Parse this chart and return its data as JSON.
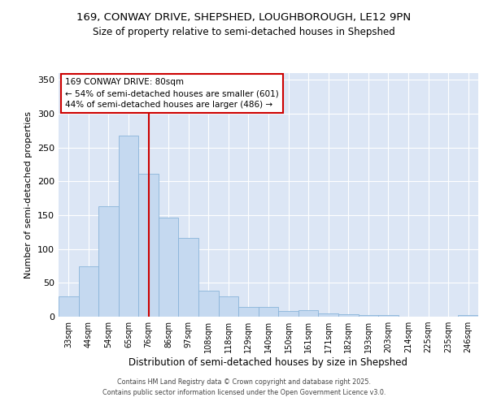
{
  "title_line1": "169, CONWAY DRIVE, SHEPSHED, LOUGHBOROUGH, LE12 9PN",
  "title_line2": "Size of property relative to semi-detached houses in Shepshed",
  "xlabel": "Distribution of semi-detached houses by size in Shepshed",
  "ylabel": "Number of semi-detached properties",
  "categories": [
    "33sqm",
    "44sqm",
    "54sqm",
    "65sqm",
    "76sqm",
    "86sqm",
    "97sqm",
    "108sqm",
    "118sqm",
    "129sqm",
    "140sqm",
    "150sqm",
    "161sqm",
    "171sqm",
    "182sqm",
    "193sqm",
    "203sqm",
    "214sqm",
    "225sqm",
    "235sqm",
    "246sqm"
  ],
  "values": [
    30,
    75,
    163,
    268,
    211,
    146,
    117,
    39,
    30,
    14,
    14,
    9,
    10,
    5,
    4,
    2,
    2,
    0,
    0,
    0,
    2
  ],
  "bar_color": "#c5d9f0",
  "bar_edge_color": "#8ab4d9",
  "red_line_x": 4.5,
  "annotation_title": "169 CONWAY DRIVE: 80sqm",
  "annotation_line1": "← 54% of semi-detached houses are smaller (601)",
  "annotation_line2": "44% of semi-detached houses are larger (486) →",
  "ylim": [
    0,
    360
  ],
  "yticks": [
    0,
    50,
    100,
    150,
    200,
    250,
    300,
    350
  ],
  "axes_bg_color": "#dce6f5",
  "fig_bg_color": "#ffffff",
  "grid_color": "#ffffff",
  "footer_line1": "Contains HM Land Registry data © Crown copyright and database right 2025.",
  "footer_line2": "Contains public sector information licensed under the Open Government Licence v3.0."
}
